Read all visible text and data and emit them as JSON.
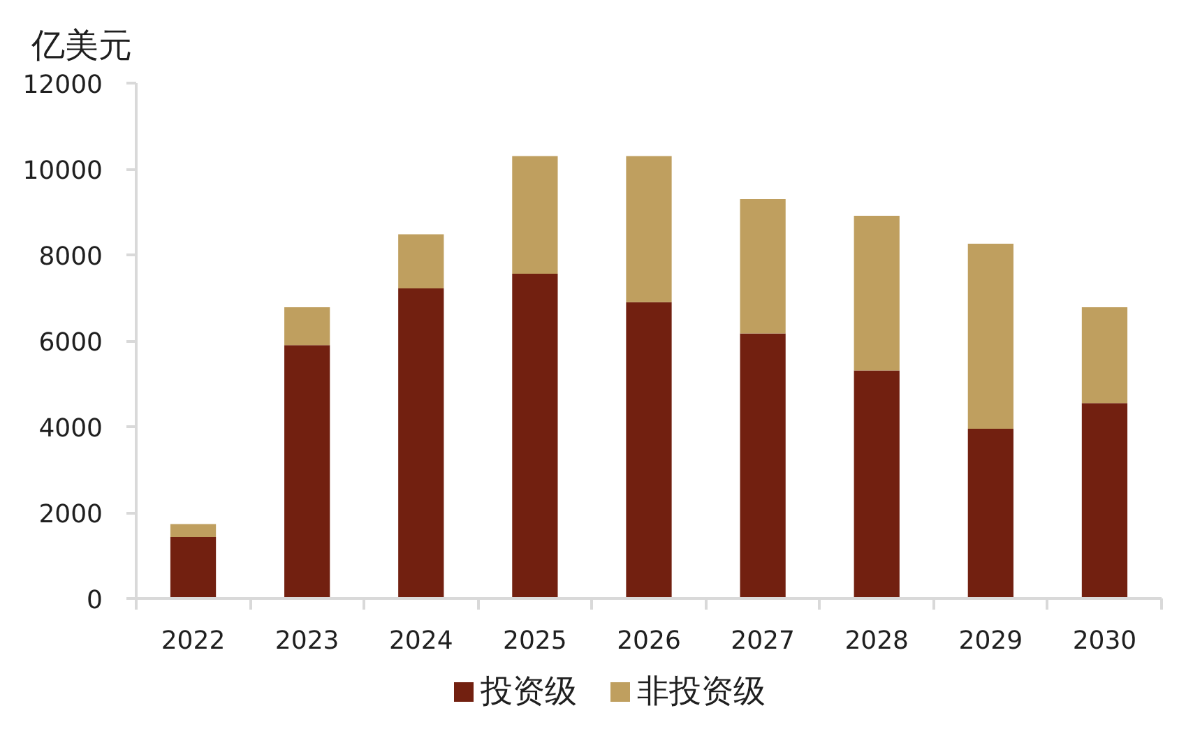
{
  "chart_data": {
    "type": "bar",
    "stacked": true,
    "ylabel": "亿美元",
    "categories": [
      "2022",
      "2023",
      "2024",
      "2025",
      "2026",
      "2027",
      "2028",
      "2029",
      "2030"
    ],
    "series": [
      {
        "name": "投资级",
        "color": "#722010",
        "values": [
          1430,
          5900,
          7220,
          7560,
          6900,
          6170,
          5310,
          3950,
          4550
        ]
      },
      {
        "name": "非投资级",
        "color": "#bf9f5f",
        "values": [
          300,
          880,
          1260,
          2740,
          3400,
          3130,
          3600,
          4310,
          2230
        ]
      }
    ],
    "ylim": [
      0,
      12000
    ],
    "yticks": [
      0,
      2000,
      4000,
      6000,
      8000,
      10000,
      12000
    ],
    "grid": false,
    "legend": "bottom"
  }
}
